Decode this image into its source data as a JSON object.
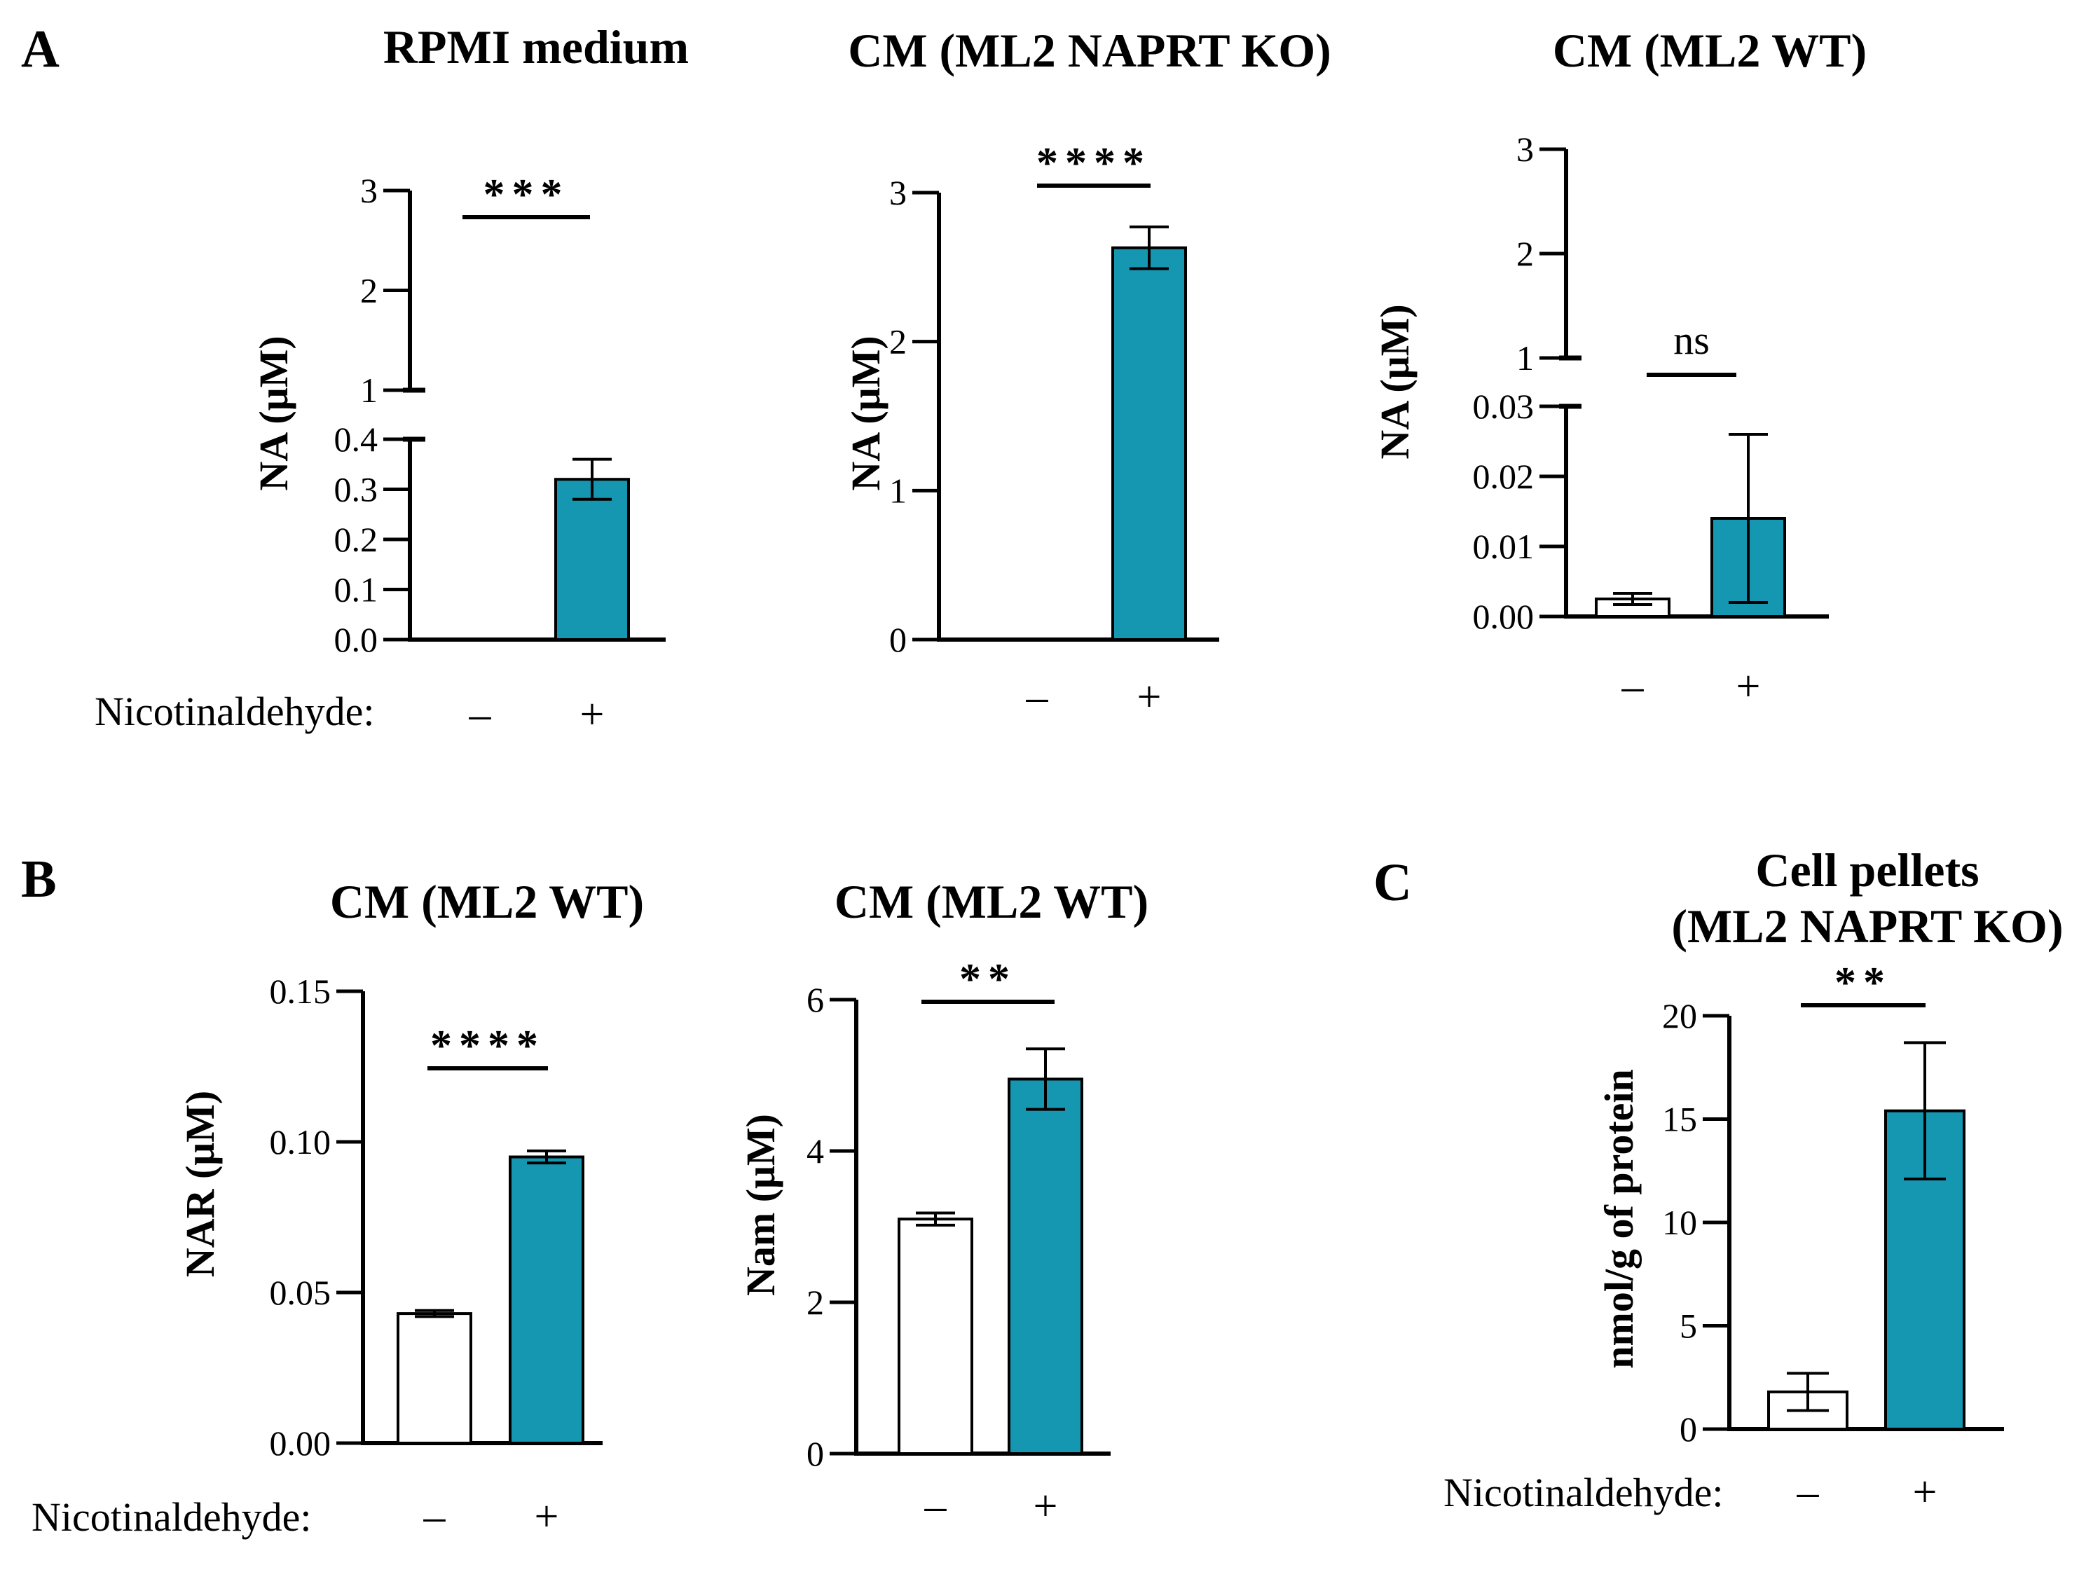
{
  "figure": {
    "panel_letters": [
      "A",
      "B",
      "C"
    ],
    "treatment_label": "Nicotinaldehyde:",
    "colors": {
      "treated": "#1597B2",
      "control": "#FFFFFF",
      "axis": "#000000"
    }
  },
  "chart_data": [
    {
      "id": "A1",
      "panel": "A",
      "type": "bar",
      "title": "RPMI medium",
      "title2": "",
      "ylabel": "NA (μM)",
      "categories": [
        "–",
        "+"
      ],
      "values": [
        0,
        0.32
      ],
      "errors": [
        0,
        0.04
      ],
      "colors": [
        "#FFFFFF",
        "#1597B2"
      ],
      "show_treatment_label": true,
      "ylim": [
        0,
        3
      ],
      "axis_break": {
        "lower": [
          0,
          0.4
        ],
        "upper": [
          1,
          3
        ]
      },
      "lower_ticks": [
        "0.0",
        "0.1",
        "0.2",
        "0.3",
        "0.4"
      ],
      "lower_tick_values": [
        0,
        0.1,
        0.2,
        0.3,
        0.4
      ],
      "upper_ticks": [
        "1",
        "2",
        "3"
      ],
      "upper_tick_values": [
        1,
        2,
        3
      ],
      "significance": "***"
    },
    {
      "id": "A2",
      "panel": "A",
      "type": "bar",
      "title": "CM (ML2 NAPRT KO)",
      "title2": "",
      "ylabel": "NA (μM)",
      "categories": [
        "–",
        "+"
      ],
      "values": [
        0,
        2.63
      ],
      "errors": [
        0,
        0.14
      ],
      "colors": [
        "#FFFFFF",
        "#1597B2"
      ],
      "show_treatment_label": false,
      "ylim": [
        0,
        3
      ],
      "ticks": [
        "0",
        "1",
        "2",
        "3"
      ],
      "tick_values": [
        0,
        1,
        2,
        3
      ],
      "significance": "****"
    },
    {
      "id": "A3",
      "panel": "A",
      "type": "bar",
      "title": "CM (ML2 WT)",
      "title2": "",
      "ylabel": "NA (μM)",
      "categories": [
        "–",
        "+"
      ],
      "values": [
        0.0025,
        0.014
      ],
      "errors": [
        0.0008,
        0.012
      ],
      "colors": [
        "#FFFFFF",
        "#1597B2"
      ],
      "show_treatment_label": false,
      "ylim": [
        0,
        3
      ],
      "axis_break": {
        "lower": [
          0,
          0.03
        ],
        "upper": [
          1,
          3
        ]
      },
      "lower_ticks": [
        "0.00",
        "0.01",
        "0.02",
        "0.03"
      ],
      "lower_tick_values": [
        0,
        0.01,
        0.02,
        0.03
      ],
      "upper_ticks": [
        "1",
        "2",
        "3"
      ],
      "upper_tick_values": [
        1,
        2,
        3
      ],
      "significance": "ns"
    },
    {
      "id": "B1",
      "panel": "B",
      "type": "bar",
      "title": "CM (ML2 WT)",
      "title2": "",
      "ylabel": "NAR (μM)",
      "categories": [
        "–",
        "+"
      ],
      "values": [
        0.043,
        0.095
      ],
      "errors": [
        0.001,
        0.002
      ],
      "colors": [
        "#FFFFFF",
        "#1597B2"
      ],
      "show_treatment_label": true,
      "ylim": [
        0,
        0.15
      ],
      "ticks": [
        "0.00",
        "0.05",
        "0.10",
        "0.15"
      ],
      "tick_values": [
        0,
        0.05,
        0.1,
        0.15
      ],
      "significance": "****"
    },
    {
      "id": "B2",
      "panel": "B",
      "type": "bar",
      "title": "CM (ML2 WT)",
      "title2": "",
      "ylabel": "Nam (μM)",
      "categories": [
        "–",
        "+"
      ],
      "values": [
        3.1,
        4.95
      ],
      "errors": [
        0.08,
        0.4
      ],
      "colors": [
        "#FFFFFF",
        "#1597B2"
      ],
      "show_treatment_label": false,
      "ylim": [
        0,
        6
      ],
      "ticks": [
        "0",
        "2",
        "4",
        "6"
      ],
      "tick_values": [
        0,
        2,
        4,
        6
      ],
      "significance": "**"
    },
    {
      "id": "C1",
      "panel": "C",
      "type": "bar",
      "title": "Cell pellets",
      "title2": "(ML2  NAPRT KO)",
      "ylabel": "nmol/g of protein",
      "categories": [
        "–",
        "+"
      ],
      "values": [
        1.8,
        15.4
      ],
      "errors": [
        0.9,
        3.3
      ],
      "colors": [
        "#FFFFFF",
        "#1597B2"
      ],
      "show_treatment_label": true,
      "ylim": [
        0,
        20
      ],
      "ticks": [
        "0",
        "5",
        "10",
        "15",
        "20"
      ],
      "tick_values": [
        0,
        5,
        10,
        15,
        20
      ],
      "significance": "**"
    }
  ]
}
